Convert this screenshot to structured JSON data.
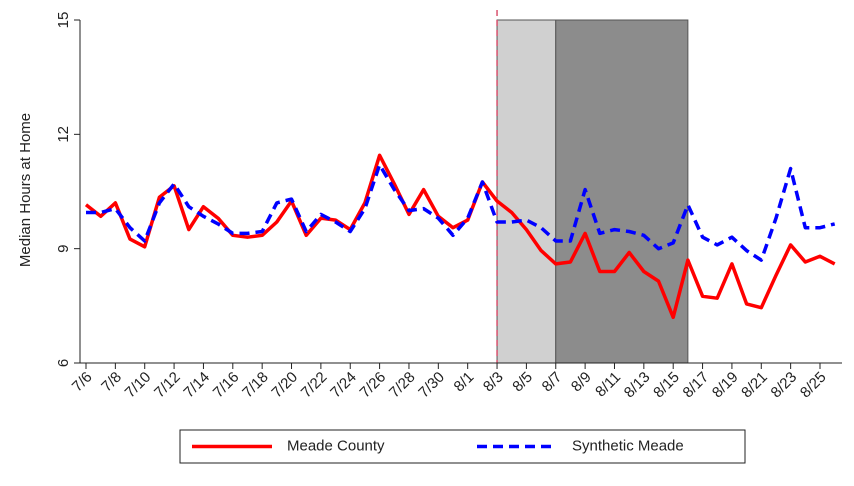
{
  "chart_data": {
    "type": "line",
    "y_label": "Median Hours at Home",
    "categories": [
      "7/6",
      null,
      "7/8",
      null,
      "7/10",
      null,
      "7/12",
      null,
      "7/14",
      null,
      "7/16",
      null,
      "7/18",
      null,
      "7/20",
      null,
      "7/22",
      null,
      "7/24",
      null,
      "7/26",
      null,
      "7/28",
      null,
      "7/30",
      null,
      "8/1",
      null,
      "8/3",
      null,
      "8/5",
      null,
      "8/7",
      null,
      "8/9",
      null,
      "8/11",
      null,
      "8/13",
      null,
      "8/15",
      null,
      "8/17",
      null,
      "8/19",
      null,
      "8/21",
      null,
      "8/23",
      null,
      "8/25",
      null
    ],
    "series": [
      {
        "name": "Meade County",
        "color": "#ff0000",
        "dash": false,
        "values": [
          10.15,
          9.85,
          10.2,
          9.25,
          9.05,
          10.35,
          10.65,
          9.5,
          10.1,
          9.8,
          9.35,
          9.3,
          9.35,
          9.7,
          10.25,
          9.35,
          9.8,
          9.75,
          9.5,
          10.2,
          11.45,
          10.7,
          9.9,
          10.55,
          9.85,
          9.55,
          9.75,
          10.75,
          10.25,
          9.95,
          9.5,
          8.95,
          8.6,
          8.65,
          9.4,
          8.4,
          8.4,
          8.9,
          8.4,
          8.15,
          7.2,
          8.7,
          7.75,
          7.7,
          8.6,
          7.55,
          7.45,
          8.3,
          9.1,
          8.65,
          8.8,
          8.6
        ]
      },
      {
        "name": "Synthetic Meade",
        "color": "#0000ff",
        "dash": true,
        "values": [
          9.95,
          9.95,
          10.05,
          9.55,
          9.2,
          10.2,
          10.7,
          10.1,
          9.85,
          9.65,
          9.4,
          9.4,
          9.45,
          10.2,
          10.3,
          9.45,
          9.9,
          9.7,
          9.45,
          10.05,
          11.2,
          10.55,
          10.0,
          10.05,
          9.8,
          9.35,
          9.8,
          10.75,
          9.7,
          9.7,
          9.75,
          9.55,
          9.2,
          9.2,
          10.55,
          9.4,
          9.5,
          9.45,
          9.35,
          9.0,
          9.15,
          10.15,
          9.3,
          9.1,
          9.3,
          8.95,
          8.7,
          9.8,
          11.1,
          9.55,
          9.55,
          9.65
        ]
      }
    ],
    "ylim": [
      6,
      15
    ],
    "yticks": [
      6,
      9,
      12,
      15
    ],
    "vline": {
      "at": 28,
      "color": "#d9536f"
    },
    "spans": [
      {
        "start": 28,
        "end": 32,
        "color": "#d0d0d0"
      },
      {
        "start": 32,
        "end": 41,
        "color": "#8c8c8c"
      }
    ]
  }
}
